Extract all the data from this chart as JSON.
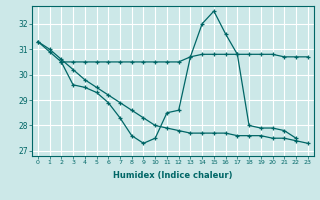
{
  "xlabel": "Humidex (Indice chaleur)",
  "bg_color": "#cce8e8",
  "grid_color": "#ffffff",
  "line_color": "#006666",
  "xlim": [
    -0.5,
    23.5
  ],
  "ylim": [
    26.8,
    32.7
  ],
  "yticks": [
    27,
    28,
    29,
    30,
    31,
    32
  ],
  "xticks": [
    0,
    1,
    2,
    3,
    4,
    5,
    6,
    7,
    8,
    9,
    10,
    11,
    12,
    13,
    14,
    15,
    16,
    17,
    18,
    19,
    20,
    21,
    22,
    23
  ],
  "series": [
    {
      "x": [
        0,
        1,
        2,
        3,
        4,
        5,
        6,
        7,
        8,
        9,
        10,
        11,
        12,
        13,
        14,
        15,
        16,
        17,
        18,
        19,
        20,
        21,
        22
      ],
      "y": [
        31.3,
        30.9,
        30.5,
        29.6,
        29.5,
        29.3,
        28.9,
        28.3,
        27.6,
        27.3,
        27.5,
        28.5,
        28.6,
        30.7,
        32.0,
        32.5,
        31.6,
        30.8,
        28.0,
        27.9,
        27.9,
        27.8,
        27.5
      ]
    },
    {
      "x": [
        2,
        3,
        4,
        5,
        6,
        7,
        8,
        9,
        10,
        11,
        12,
        13,
        14,
        15,
        16,
        17,
        18,
        19,
        20,
        21,
        22,
        23
      ],
      "y": [
        30.5,
        30.5,
        30.5,
        30.5,
        30.5,
        30.5,
        30.5,
        30.5,
        30.5,
        30.5,
        30.5,
        30.7,
        30.8,
        30.8,
        30.8,
        30.8,
        30.8,
        30.8,
        30.8,
        30.7,
        30.7,
        30.7
      ]
    },
    {
      "x": [
        0,
        1,
        2,
        3,
        4,
        5,
        6,
        7,
        8,
        9,
        10,
        11,
        12,
        13,
        14,
        15,
        16,
        17,
        18,
        19,
        20,
        21,
        22,
        23
      ],
      "y": [
        31.3,
        31.0,
        30.6,
        30.2,
        29.8,
        29.5,
        29.2,
        28.9,
        28.6,
        28.3,
        28.0,
        27.9,
        27.8,
        27.7,
        27.7,
        27.7,
        27.7,
        27.6,
        27.6,
        27.6,
        27.5,
        27.5,
        27.4,
        27.3
      ]
    }
  ]
}
